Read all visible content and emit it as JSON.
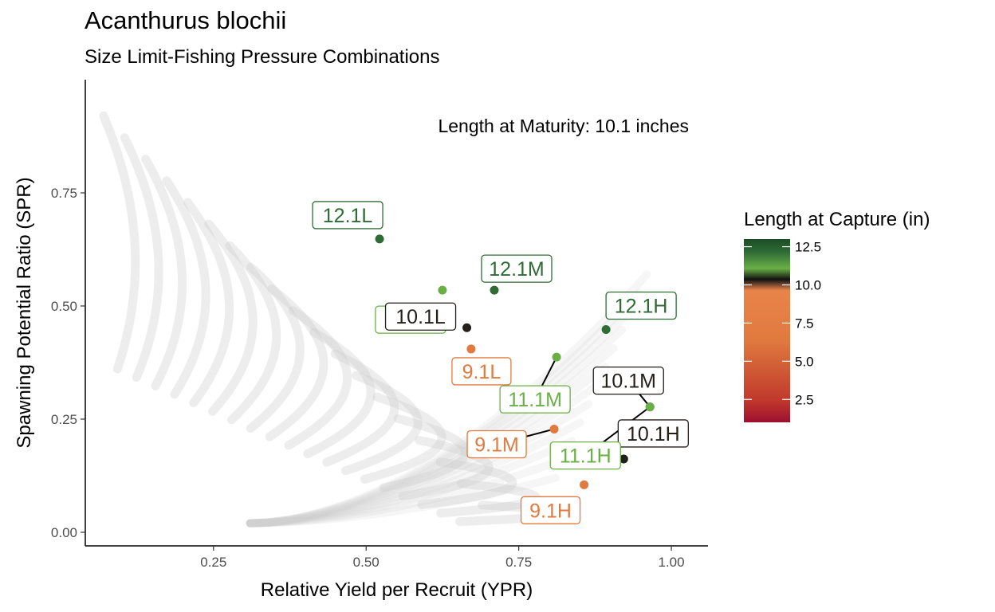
{
  "chart_data": {
    "type": "scatter",
    "title": "Acanthurus blochii",
    "subtitle": "Size Limit-Fishing Pressure Combinations",
    "xlabel": "Relative Yield per Recruit (YPR)",
    "ylabel": "Spawning Potential Ratio (SPR)",
    "xlim": [
      0.04,
      1.06
    ],
    "ylim": [
      -0.03,
      1.0
    ],
    "x_ticks": [
      0.25,
      0.5,
      0.75,
      1.0
    ],
    "x_tick_labels": [
      "0.25",
      "0.50",
      "0.75",
      "1.00"
    ],
    "y_ticks": [
      0.0,
      0.25,
      0.5,
      0.75
    ],
    "y_tick_labels": [
      "0.00",
      "0.25",
      "0.50",
      "0.75"
    ],
    "grid": false,
    "annotation": "Length at Maturity: 10.1 inches",
    "background_curves_color": "#cccccc",
    "labeled_points": [
      {
        "label": "12.1L",
        "x": 0.522,
        "y": 0.648,
        "color": "#2e6b35"
      },
      {
        "label": "11.1L",
        "x": 0.625,
        "y": 0.535,
        "color": "#6aaf46"
      },
      {
        "label": "12.1M",
        "x": 0.71,
        "y": 0.535,
        "color": "#2e6b35"
      },
      {
        "label": "10.1L",
        "x": 0.665,
        "y": 0.452,
        "color": "#231f1b"
      },
      {
        "label": "12.1H",
        "x": 0.893,
        "y": 0.448,
        "color": "#2e6b35"
      },
      {
        "label": "9.1L",
        "x": 0.672,
        "y": 0.405,
        "color": "#e07a3f"
      },
      {
        "label": "11.1M",
        "x": 0.812,
        "y": 0.387,
        "color": "#6aaf46"
      },
      {
        "label": "10.1M",
        "x": 0.965,
        "y": 0.277,
        "color": "#231f1b"
      },
      {
        "label": "9.1M",
        "x": 0.808,
        "y": 0.228,
        "color": "#e07a3f"
      },
      {
        "label": "10.1H",
        "x": 0.922,
        "y": 0.162,
        "color": "#231f1b"
      },
      {
        "label": "11.1H",
        "x": 0.965,
        "y": 0.277,
        "color": "#6aaf46"
      },
      {
        "label": "9.1H",
        "x": 0.857,
        "y": 0.105,
        "color": "#e07a3f"
      }
    ],
    "legend": {
      "title": "Length at Capture (in)",
      "ticks": [
        "12.5",
        "10.0",
        "7.5",
        "5.0",
        "2.5"
      ],
      "tick_values": [
        12.5,
        10.0,
        7.5,
        5.0,
        2.5
      ],
      "range": [
        1.0,
        13.0
      ],
      "placement": "right",
      "gradient_colors": [
        "#9e1030",
        "#c0392b",
        "#e07a3f",
        "#e8834a",
        "#111111",
        "#6aaf46",
        "#2e6b35",
        "#1a4d24"
      ]
    }
  }
}
